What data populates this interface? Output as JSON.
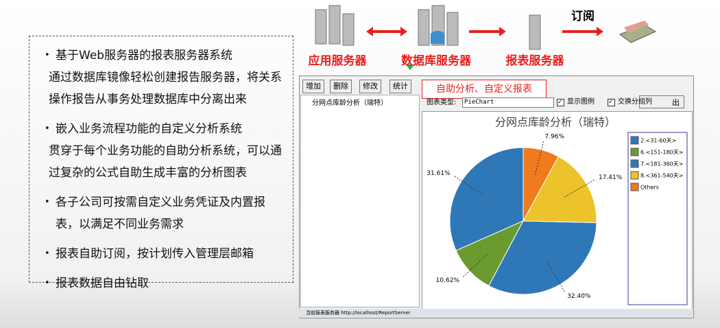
{
  "left_panel": {
    "items": [
      {
        "text": "基于Web服务器的报表服务器系统",
        "detail": "通过数据库镜像轻松创建报告服务器，将关系操作报告从事务处理数据库中分离出来"
      },
      {
        "text": "嵌入业务流程功能的自定义分析系统",
        "detail": "贯穿于每个业务功能的自助分析系统，可以通过复杂的公式自助生成丰富的分析图表"
      },
      {
        "text": "各子公司可按需自定义业务凭证及内置报表，以满足不同业务需求"
      },
      {
        "text": "报表自助订阅，按计划传入管理层邮箱"
      },
      {
        "text": "报表数据自由钻取"
      }
    ]
  },
  "diagram": {
    "nodes": [
      "应用服务器",
      "数据库服务器",
      "报表服务器"
    ],
    "subscribe_label": "订阅"
  },
  "app_window": {
    "buttons": [
      "增加",
      "删除",
      "修改",
      "统计"
    ],
    "callout": "自助分析、自定义报表",
    "tree_item": "分网点库龄分析（瑞特）",
    "chart_type_label": "图表类型:",
    "chart_type_value": "PieChart",
    "checkboxes": [
      "显示图例",
      "交换分组列"
    ],
    "export_button": "出",
    "status_bar": "当前报表服务器 http://localhost/ReportServer"
  },
  "chart_data": {
    "type": "pie",
    "title": "分网点库龄分析（瑞特）",
    "categories": [
      "2.<31-60天>",
      "6.<151-180天>",
      "7.<181-360天>",
      "8.<361-540天>",
      "Others"
    ],
    "values": [
      31.61,
      10.62,
      32.4,
      17.41,
      7.96
    ],
    "value_labels": [
      "31.61%",
      "10.62%",
      "32.40%",
      "17.41%",
      "7.96%"
    ],
    "colors": [
      "#2f78b8",
      "#6b9a30",
      "#2f78b8",
      "#ecc32a",
      "#f07a1e"
    ],
    "legend": "right"
  }
}
